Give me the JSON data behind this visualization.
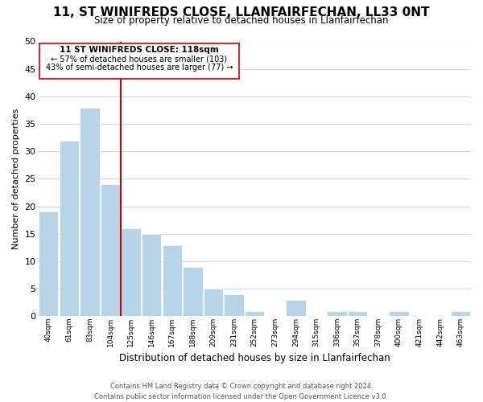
{
  "title": "11, ST WINIFREDS CLOSE, LLANFAIRFECHAN, LL33 0NT",
  "subtitle": "Size of property relative to detached houses in Llanfairfechan",
  "xlabel": "Distribution of detached houses by size in Llanfairfechan",
  "ylabel": "Number of detached properties",
  "bin_labels": [
    "40sqm",
    "61sqm",
    "83sqm",
    "104sqm",
    "125sqm",
    "146sqm",
    "167sqm",
    "188sqm",
    "209sqm",
    "231sqm",
    "252sqm",
    "273sqm",
    "294sqm",
    "315sqm",
    "336sqm",
    "357sqm",
    "378sqm",
    "400sqm",
    "421sqm",
    "442sqm",
    "463sqm"
  ],
  "bar_heights": [
    19,
    32,
    38,
    24,
    16,
    15,
    13,
    9,
    5,
    4,
    1,
    0,
    3,
    0,
    1,
    1,
    0,
    1,
    0,
    0,
    1
  ],
  "bar_color": "#b8d4e8",
  "bar_edge_color": "#ffffff",
  "grid_color": "#c8d8e8",
  "property_line_color": "#cc0000",
  "annotation_title": "11 ST WINIFREDS CLOSE: 118sqm",
  "annotation_line1": "← 57% of detached houses are smaller (103)",
  "annotation_line2": "43% of semi-detached houses are larger (77) →",
  "annotation_box_color": "#ffffff",
  "annotation_box_edge": "#cc0000",
  "bg_color": "#ffffff",
  "ylim": [
    0,
    50
  ],
  "yticks": [
    0,
    5,
    10,
    15,
    20,
    25,
    30,
    35,
    40,
    45,
    50
  ],
  "footer_line1": "Contains HM Land Registry data © Crown copyright and database right 2024.",
  "footer_line2": "Contains public sector information licensed under the Open Government Licence v3.0."
}
